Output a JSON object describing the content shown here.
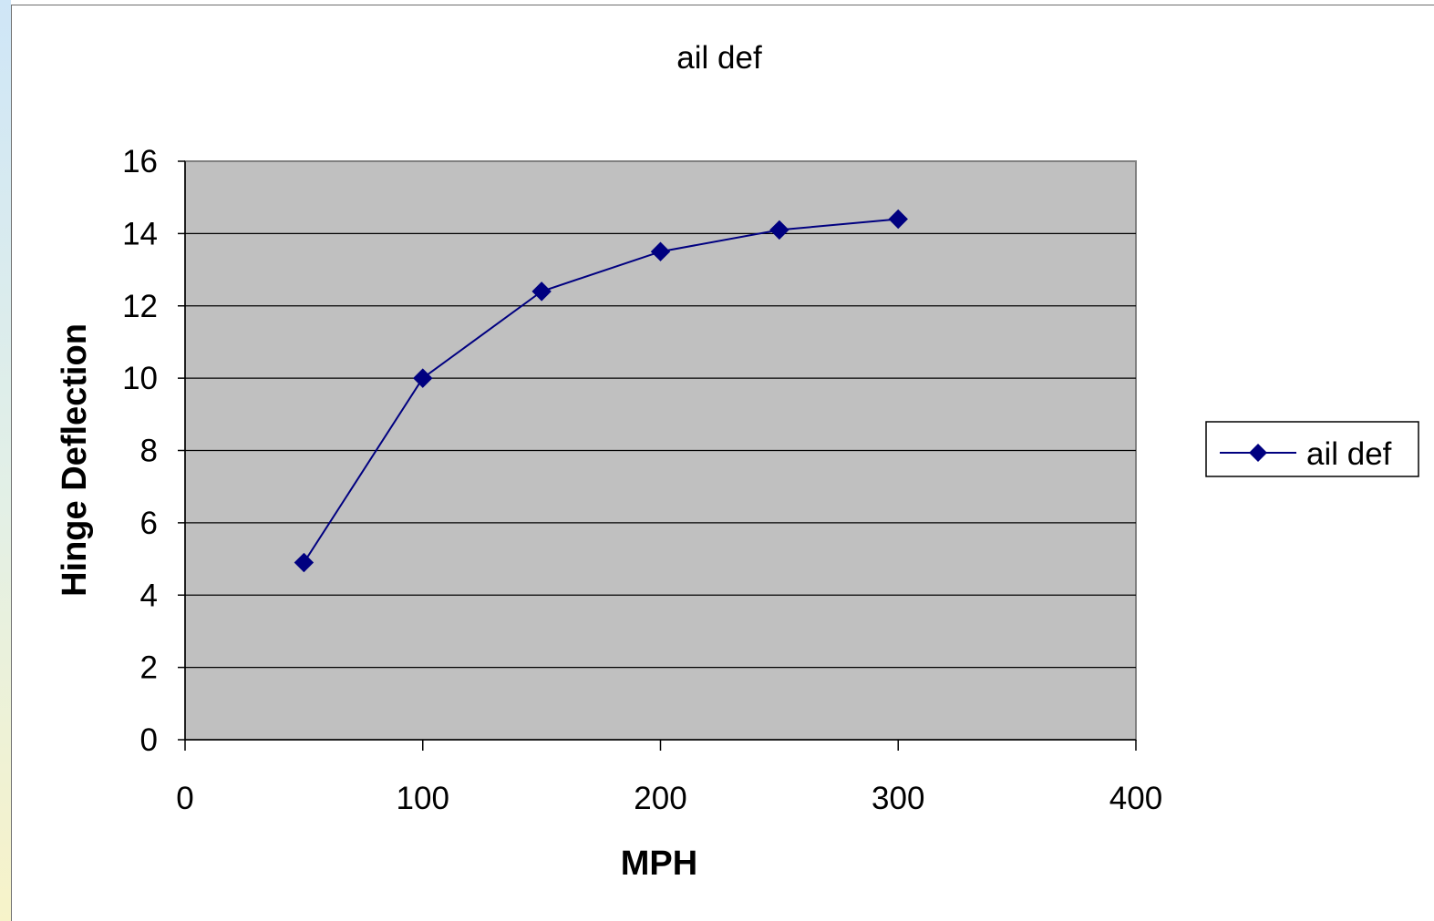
{
  "chart_data": {
    "type": "line",
    "title": "ail def",
    "xlabel": "MPH",
    "ylabel": "Hinge Deflection",
    "xlim": [
      0,
      400
    ],
    "ylim": [
      0,
      16
    ],
    "xticks": [
      "0",
      "100",
      "200",
      "300",
      "400"
    ],
    "yticks": [
      "0",
      "2",
      "4",
      "6",
      "8",
      "10",
      "12",
      "14",
      "16"
    ],
    "grid": "horizontal",
    "legend_position": "right",
    "plot_background": "#c0c0c0",
    "series": [
      {
        "name": "ail def",
        "color": "#000080",
        "marker": "diamond",
        "x": [
          50,
          100,
          150,
          200,
          250,
          300
        ],
        "y": [
          4.9,
          10.0,
          12.4,
          13.5,
          14.1,
          14.4
        ]
      }
    ]
  }
}
